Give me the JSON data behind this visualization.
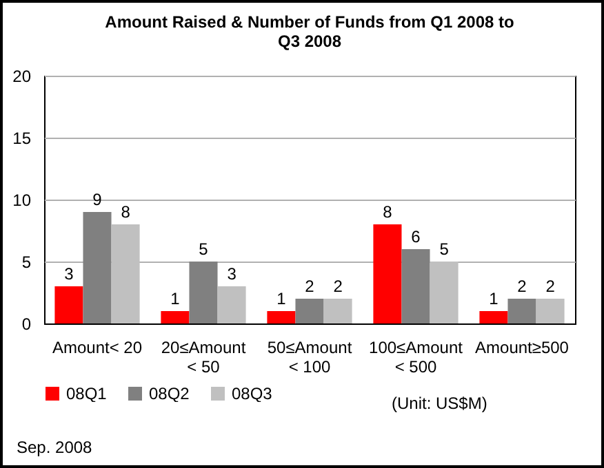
{
  "chart_data": {
    "type": "bar",
    "title": "Amount Raised & Number of Funds from Q1 2008 to Q3 2008",
    "categories": [
      "Amount< 20",
      "20≤Amount < 50",
      "50≤Amount < 100",
      "100≤Amount < 500",
      "Amount≥500"
    ],
    "series": [
      {
        "name": "08Q1",
        "color": "#ff0000",
        "values": [
          3,
          1,
          1,
          8,
          1
        ]
      },
      {
        "name": "08Q2",
        "color": "#808080",
        "values": [
          9,
          5,
          2,
          6,
          2
        ]
      },
      {
        "name": "08Q3",
        "color": "#c0c0c0",
        "values": [
          8,
          3,
          2,
          5,
          2
        ]
      }
    ],
    "ylim": [
      0,
      20
    ],
    "yticks": [
      0,
      5,
      10,
      15,
      20
    ],
    "grid": "y",
    "legend": "bottom",
    "data_labels": true,
    "annotations": [
      "(Unit: US$M)",
      "Sep. 2008"
    ]
  }
}
